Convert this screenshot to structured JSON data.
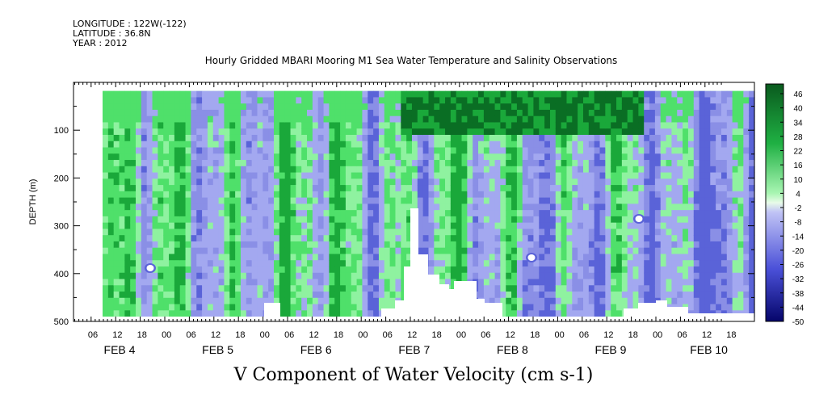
{
  "header": {
    "longitude": "LONGITUDE : 122W(-122)",
    "latitude": "LATITUDE : 36.8N",
    "year": "YEAR : 2012",
    "title": "Hourly Gridded MBARI Mooring M1 Sea Water Temperature and Salinity Observations"
  },
  "chart_data": {
    "type": "heatmap",
    "title": "V Component of Water Velocity (cm s-1)",
    "ylabel": "DEPTH (m)",
    "xlabel": "",
    "ylim": [
      500,
      0
    ],
    "yticks": [
      100,
      200,
      300,
      400,
      500
    ],
    "y_tick_labels": [
      "100",
      "200",
      "300",
      "400",
      "500"
    ],
    "x_hour_labels": [
      "06",
      "12",
      "18",
      "00",
      "06",
      "12",
      "18",
      "00",
      "06",
      "12",
      "18",
      "00",
      "06",
      "12",
      "18",
      "00",
      "06",
      "12",
      "18",
      "00",
      "06",
      "12",
      "18",
      "00",
      "06",
      "12",
      "18"
    ],
    "x_day_labels": [
      "FEB 4",
      "FEB 5",
      "FEB 6",
      "FEB 7",
      "FEB 8",
      "FEB 9",
      "FEB 10"
    ],
    "colorbar_labels": [
      "46",
      "40",
      "34",
      "28",
      "22",
      "16",
      "10",
      "4",
      "-2",
      "-8",
      "-14",
      "-20",
      "-26",
      "-32",
      "-38",
      "-44",
      "-50"
    ],
    "colorbar_range": [
      -50,
      50
    ],
    "data_depth_range": [
      18,
      490
    ],
    "colors": {
      "negative_light": "#a3a8f0",
      "negative_mid": "#8a8fe6",
      "negative_strong": "#5a63d8",
      "positive_light": "#8ff2a0",
      "positive_mid": "#4fe06a",
      "positive_strong": "#1aa83a",
      "positive_dark": "#0a6e24"
    }
  }
}
